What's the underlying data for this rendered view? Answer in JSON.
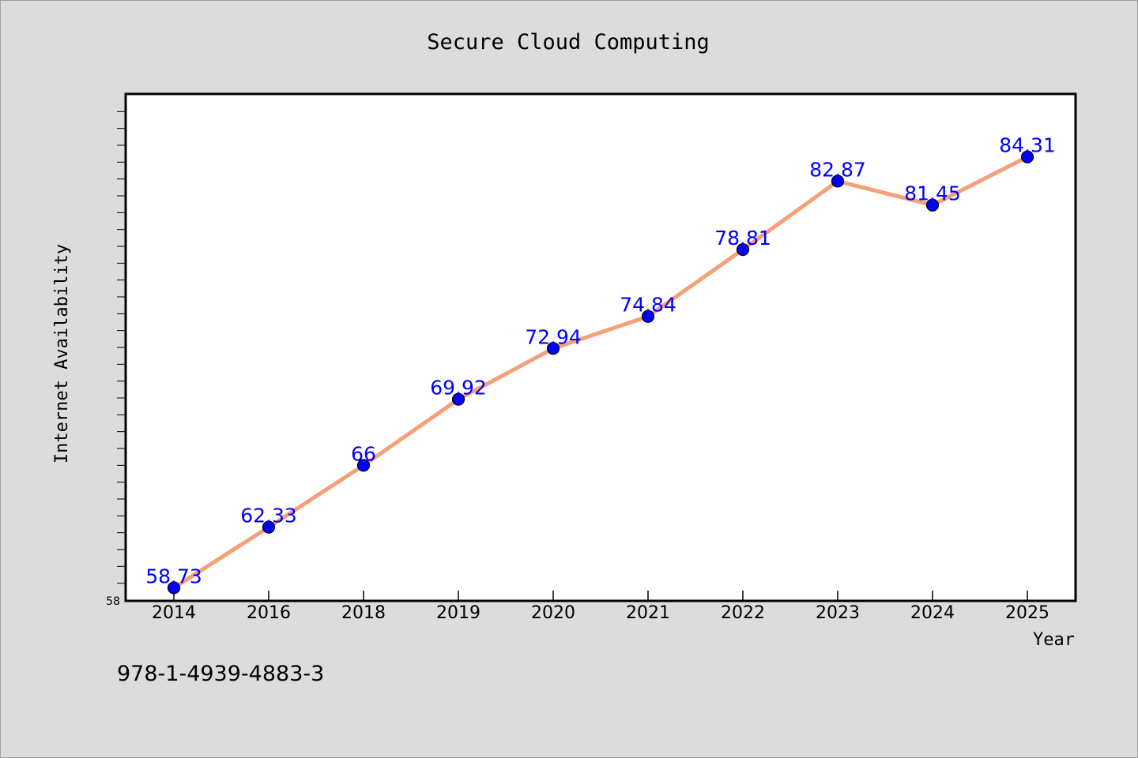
{
  "footer": "978-1-4939-4883-3",
  "colors": {
    "background": "#dcdcdc",
    "plot_background": "#ffffff",
    "line": "#f4a07a",
    "marker": "#0000ff",
    "data_label": "#0000ff"
  },
  "chart_data": {
    "type": "line",
    "title": "Secure Cloud Computing",
    "xlabel": "Year",
    "ylabel": "Internet Availability",
    "categories": [
      "2014",
      "2016",
      "2018",
      "2019",
      "2020",
      "2021",
      "2022",
      "2023",
      "2024",
      "2025"
    ],
    "series": [
      {
        "values": [
          58.73,
          62.33,
          66,
          69.92,
          72.94,
          74.84,
          78.81,
          82.87,
          81.45,
          84.31
        ],
        "labels": [
          "58.73",
          "62.33",
          "66",
          "69.92",
          "72.94",
          "74.84",
          "78.81",
          "82.87",
          "81.45",
          "84.31"
        ]
      }
    ],
    "ylim": [
      58,
      88
    ],
    "ytick_labels": [
      "58"
    ],
    "grid": false,
    "legend": "none"
  }
}
